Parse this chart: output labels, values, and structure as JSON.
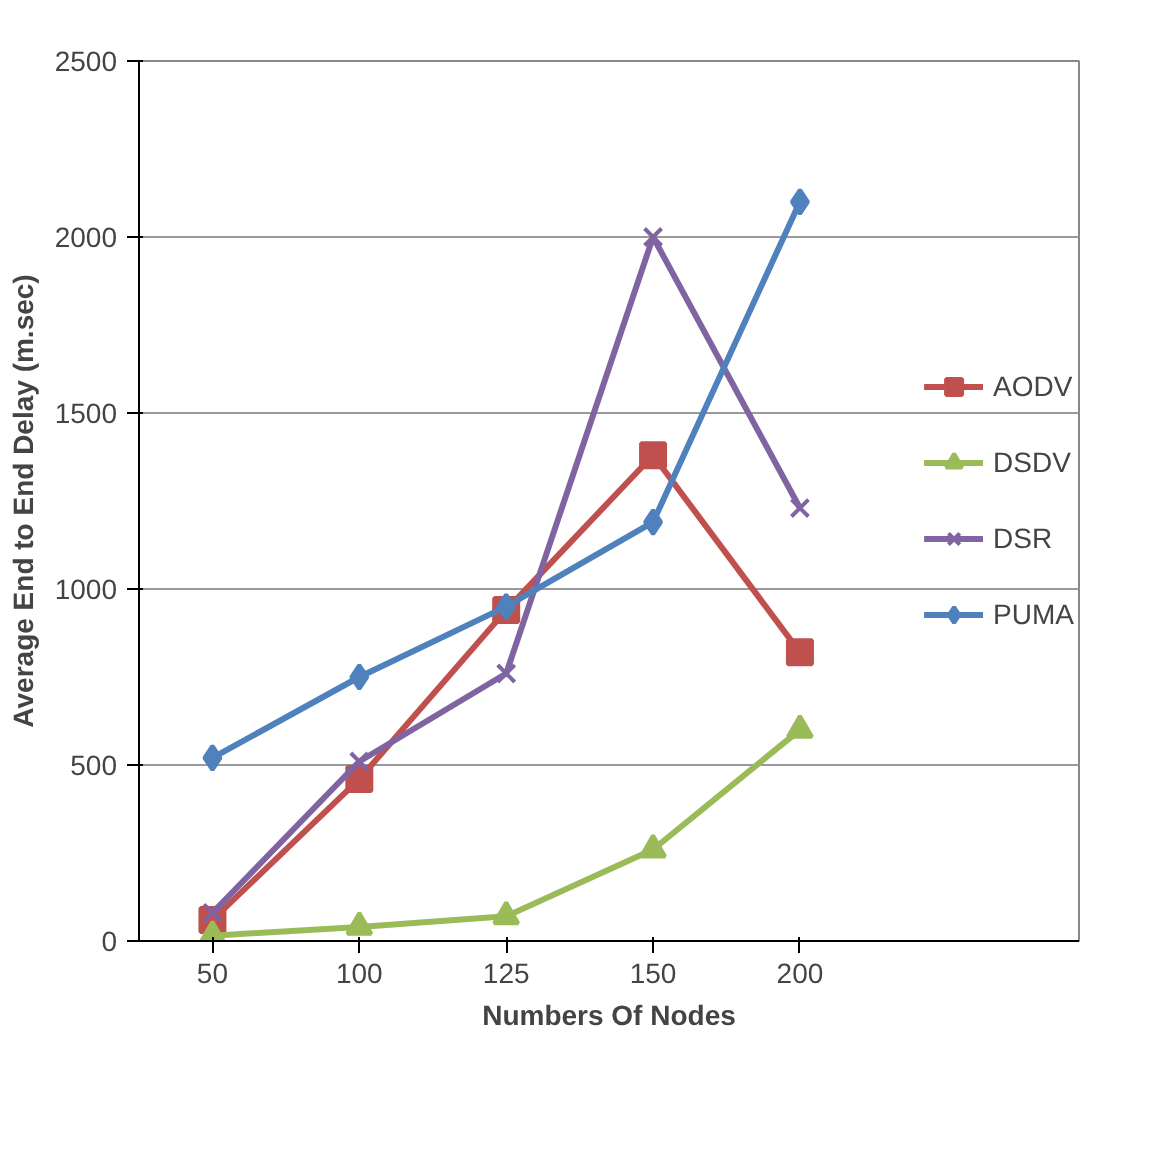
{
  "chart_data": {
    "type": "line",
    "xlabel": "Numbers Of Nodes",
    "ylabel": "Average End to End Delay (m.sec)",
    "categories": [
      "50",
      "100",
      "125",
      "150",
      "200"
    ],
    "series": [
      {
        "name": "AODV",
        "color": "#c0504d",
        "marker": "square",
        "values": [
          60,
          460,
          940,
          1380,
          820
        ]
      },
      {
        "name": "DSDV",
        "color": "#9bbb59",
        "marker": "triangle",
        "values": [
          15,
          40,
          70,
          260,
          600
        ]
      },
      {
        "name": "DSR",
        "color": "#8064a2",
        "marker": "cross",
        "values": [
          80,
          510,
          760,
          2000,
          1230
        ]
      },
      {
        "name": "PUMA",
        "color": "#4f81bd",
        "marker": "diamond",
        "values": [
          520,
          750,
          950,
          1190,
          2100
        ]
      }
    ],
    "ylim": [
      0,
      2500
    ],
    "yticks": [
      0,
      500,
      1000,
      1500,
      2000,
      2500
    ],
    "grid": "y",
    "legend": "right"
  }
}
